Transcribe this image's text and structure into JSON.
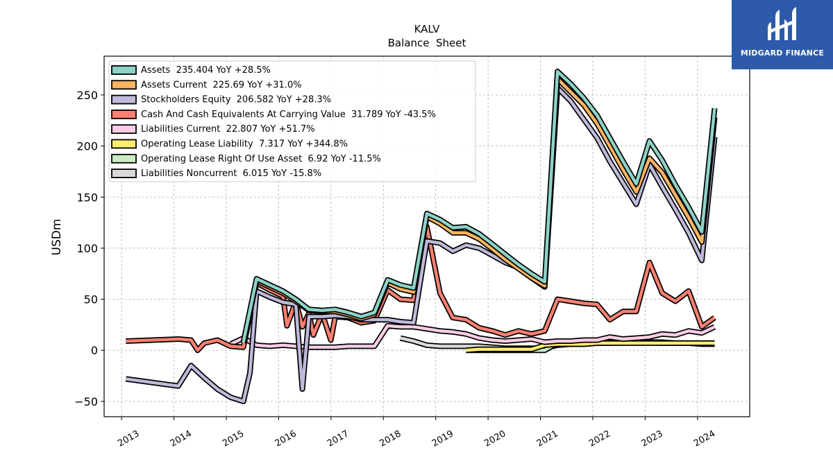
{
  "brand": {
    "name": "MIDGARD FINANCE",
    "color": "#2d5baa"
  },
  "chart_data": {
    "type": "line",
    "title": "KALV",
    "subtitle": "Balance  Sheet",
    "ylabel": "USDm",
    "xlabel": "",
    "xlim": [
      "2012-09-01",
      "2024-12-31"
    ],
    "ylim": [
      -65,
      288
    ],
    "x_ticks": [
      "2013",
      "2014",
      "2015",
      "2016",
      "2017",
      "2018",
      "2019",
      "2020",
      "2021",
      "2022",
      "2023",
      "2024"
    ],
    "y_ticks": [
      -50,
      0,
      50,
      100,
      150,
      200,
      250
    ],
    "grid": true,
    "legend_position": "top-left",
    "series": [
      {
        "name": "Assets",
        "legend": "Assets  235.404 YoY +28.5%",
        "color": "#8dd3c7",
        "points": [
          [
            "2015-04-30",
            8
          ],
          [
            "2015-07-31",
            70
          ],
          [
            "2015-10-31",
            64
          ],
          [
            "2016-01-31",
            58
          ],
          [
            "2016-04-30",
            50
          ],
          [
            "2016-07-31",
            40
          ],
          [
            "2016-10-31",
            39
          ],
          [
            "2017-01-31",
            40
          ],
          [
            "2017-04-30",
            37
          ],
          [
            "2017-07-31",
            33
          ],
          [
            "2017-10-31",
            37
          ],
          [
            "2018-01-31",
            69
          ],
          [
            "2018-04-30",
            64
          ],
          [
            "2018-07-31",
            61
          ],
          [
            "2018-10-31",
            134
          ],
          [
            "2019-01-31",
            128
          ],
          [
            "2019-04-30",
            120
          ],
          [
            "2019-07-31",
            121
          ],
          [
            "2019-10-31",
            114
          ],
          [
            "2020-01-31",
            104
          ],
          [
            "2020-04-30",
            94
          ],
          [
            "2020-07-31",
            84
          ],
          [
            "2020-10-31",
            75
          ],
          [
            "2021-01-31",
            67
          ],
          [
            "2021-04-30",
            273
          ],
          [
            "2021-07-31",
            261
          ],
          [
            "2021-10-31",
            247
          ],
          [
            "2022-01-31",
            230
          ],
          [
            "2022-04-30",
            208
          ],
          [
            "2022-07-31",
            185
          ],
          [
            "2022-10-31",
            163
          ],
          [
            "2023-01-31",
            205
          ],
          [
            "2023-04-30",
            186
          ],
          [
            "2023-07-31",
            162
          ],
          [
            "2023-10-31",
            140
          ],
          [
            "2024-01-31",
            116
          ],
          [
            "2024-04-30",
            237
          ]
        ]
      },
      {
        "name": "Assets Current",
        "legend": "Assets Current  225.69 YoY +31.0%",
        "color": "#fdb462",
        "points": [
          [
            "2015-04-30",
            7
          ],
          [
            "2015-07-31",
            68
          ],
          [
            "2015-10-31",
            62
          ],
          [
            "2016-01-31",
            56
          ],
          [
            "2016-04-30",
            48
          ],
          [
            "2016-07-31",
            39
          ],
          [
            "2016-10-31",
            38
          ],
          [
            "2017-01-31",
            38
          ],
          [
            "2017-04-30",
            35
          ],
          [
            "2017-07-31",
            31
          ],
          [
            "2017-10-31",
            35
          ],
          [
            "2018-01-31",
            66
          ],
          [
            "2018-04-30",
            60
          ],
          [
            "2018-07-31",
            57
          ],
          [
            "2018-10-31",
            131
          ],
          [
            "2019-01-31",
            124
          ],
          [
            "2019-04-30",
            115
          ],
          [
            "2019-07-31",
            115
          ],
          [
            "2019-10-31",
            109
          ],
          [
            "2020-01-31",
            99
          ],
          [
            "2020-04-30",
            89
          ],
          [
            "2020-07-31",
            80
          ],
          [
            "2020-10-31",
            71
          ],
          [
            "2021-01-31",
            63
          ],
          [
            "2021-04-30",
            266
          ],
          [
            "2021-07-31",
            253
          ],
          [
            "2021-10-31",
            240
          ],
          [
            "2022-01-31",
            222
          ],
          [
            "2022-04-30",
            200
          ],
          [
            "2022-07-31",
            177
          ],
          [
            "2022-10-31",
            155
          ],
          [
            "2023-01-31",
            188
          ],
          [
            "2023-04-30",
            174
          ],
          [
            "2023-07-31",
            152
          ],
          [
            "2023-10-31",
            130
          ],
          [
            "2024-01-31",
            106
          ],
          [
            "2024-04-30",
            228
          ]
        ]
      },
      {
        "name": "Stockholders Equity",
        "legend": "Stockholders Equity  206.582 YoY +28.3%",
        "color": "#bebada",
        "points": [
          [
            "2013-01-31",
            -28
          ],
          [
            "2014-01-31",
            -35
          ],
          [
            "2014-04-30",
            -15
          ],
          [
            "2014-07-31",
            -27
          ],
          [
            "2014-10-31",
            -38
          ],
          [
            "2015-01-31",
            -46
          ],
          [
            "2015-04-30",
            -50
          ],
          [
            "2015-06-15",
            -22
          ],
          [
            "2015-07-31",
            58
          ],
          [
            "2015-10-31",
            52
          ],
          [
            "2016-01-31",
            47
          ],
          [
            "2016-04-30",
            45
          ],
          [
            "2016-06-15",
            -38
          ],
          [
            "2016-07-31",
            33
          ],
          [
            "2016-10-31",
            33
          ],
          [
            "2017-01-31",
            34
          ],
          [
            "2017-04-30",
            33
          ],
          [
            "2017-07-31",
            30
          ],
          [
            "2017-10-31",
            30
          ],
          [
            "2018-01-31",
            30
          ],
          [
            "2018-04-30",
            28
          ],
          [
            "2018-07-31",
            27
          ],
          [
            "2018-10-31",
            107
          ],
          [
            "2019-01-31",
            105
          ],
          [
            "2019-04-30",
            97
          ],
          [
            "2019-07-31",
            103
          ],
          [
            "2019-10-31",
            100
          ],
          [
            "2020-01-31",
            93
          ],
          [
            "2020-04-30",
            86
          ],
          [
            "2020-07-31",
            81
          ],
          [
            "2020-10-31",
            71
          ],
          [
            "2021-01-31",
            62
          ],
          [
            "2021-04-30",
            257
          ],
          [
            "2021-07-31",
            244
          ],
          [
            "2021-10-31",
            226
          ],
          [
            "2022-01-31",
            208
          ],
          [
            "2022-04-30",
            185
          ],
          [
            "2022-07-31",
            164
          ],
          [
            "2022-10-31",
            143
          ],
          [
            "2023-01-31",
            182
          ],
          [
            "2023-04-30",
            160
          ],
          [
            "2023-07-31",
            138
          ],
          [
            "2023-10-31",
            115
          ],
          [
            "2024-01-31",
            88
          ],
          [
            "2024-04-30",
            209
          ]
        ]
      },
      {
        "name": "Cash And Cash Equivalents At Carrying Value",
        "legend": "Cash And Cash Equivalents At Carrying Value  31.789 YoY -43.5%",
        "color": "#fb8072",
        "points": [
          [
            "2013-01-31",
            9
          ],
          [
            "2014-01-31",
            11
          ],
          [
            "2014-04-30",
            10
          ],
          [
            "2014-06-15",
            0
          ],
          [
            "2014-07-31",
            7
          ],
          [
            "2014-10-31",
            10
          ],
          [
            "2015-01-31",
            4
          ],
          [
            "2015-04-30",
            3
          ],
          [
            "2015-07-31",
            66
          ],
          [
            "2015-10-31",
            59
          ],
          [
            "2016-01-31",
            53
          ],
          [
            "2016-02-28",
            24
          ],
          [
            "2016-04-30",
            48
          ],
          [
            "2016-06-15",
            23
          ],
          [
            "2016-07-31",
            36
          ],
          [
            "2016-08-31",
            15
          ],
          [
            "2016-10-31",
            36
          ],
          [
            "2016-12-31",
            10
          ],
          [
            "2017-01-31",
            33
          ],
          [
            "2017-04-30",
            32
          ],
          [
            "2017-07-31",
            27
          ],
          [
            "2017-10-31",
            29
          ],
          [
            "2018-01-31",
            59
          ],
          [
            "2018-04-30",
            50
          ],
          [
            "2018-07-31",
            49
          ],
          [
            "2018-10-31",
            121
          ],
          [
            "2019-01-31",
            56
          ],
          [
            "2019-04-30",
            32
          ],
          [
            "2019-07-31",
            30
          ],
          [
            "2019-10-31",
            22
          ],
          [
            "2020-01-31",
            19
          ],
          [
            "2020-04-30",
            15
          ],
          [
            "2020-07-31",
            19
          ],
          [
            "2020-10-31",
            16
          ],
          [
            "2021-01-31",
            19
          ],
          [
            "2021-04-30",
            50
          ],
          [
            "2021-07-31",
            48
          ],
          [
            "2021-10-31",
            46
          ],
          [
            "2022-01-31",
            45
          ],
          [
            "2022-04-30",
            30
          ],
          [
            "2022-07-31",
            38
          ],
          [
            "2022-10-31",
            38
          ],
          [
            "2023-01-31",
            86
          ],
          [
            "2023-04-30",
            56
          ],
          [
            "2023-07-31",
            48
          ],
          [
            "2023-10-31",
            58
          ],
          [
            "2024-01-31",
            23
          ],
          [
            "2024-04-30",
            32
          ]
        ]
      },
      {
        "name": "Liabilities Current",
        "legend": "Liabilities Current  22.807 YoY +51.7%",
        "color": "#fccde5",
        "points": [
          [
            "2015-01-31",
            6
          ],
          [
            "2015-04-30",
            12
          ],
          [
            "2015-07-31",
            5
          ],
          [
            "2015-10-31",
            4
          ],
          [
            "2016-01-31",
            5
          ],
          [
            "2016-04-30",
            4
          ],
          [
            "2016-07-31",
            3
          ],
          [
            "2016-10-31",
            3
          ],
          [
            "2017-01-31",
            3
          ],
          [
            "2017-04-30",
            4
          ],
          [
            "2017-07-31",
            4
          ],
          [
            "2017-10-31",
            4
          ],
          [
            "2018-01-31",
            24
          ],
          [
            "2018-04-30",
            23
          ],
          [
            "2018-07-31",
            23
          ],
          [
            "2018-10-31",
            21
          ],
          [
            "2019-01-31",
            19
          ],
          [
            "2019-04-30",
            18
          ],
          [
            "2019-07-31",
            16
          ],
          [
            "2019-10-31",
            12
          ],
          [
            "2020-01-31",
            10
          ],
          [
            "2020-04-30",
            9
          ],
          [
            "2020-07-31",
            10
          ],
          [
            "2020-10-31",
            11
          ],
          [
            "2021-01-31",
            8
          ],
          [
            "2021-04-30",
            9
          ],
          [
            "2021-07-31",
            9
          ],
          [
            "2021-10-31",
            10
          ],
          [
            "2022-01-31",
            10
          ],
          [
            "2022-04-30",
            13
          ],
          [
            "2022-07-31",
            11
          ],
          [
            "2022-10-31",
            12
          ],
          [
            "2023-01-31",
            13
          ],
          [
            "2023-04-30",
            16
          ],
          [
            "2023-07-31",
            15
          ],
          [
            "2023-10-31",
            19
          ],
          [
            "2024-01-31",
            17
          ],
          [
            "2024-04-30",
            23
          ]
        ]
      },
      {
        "name": "Operating Lease Liability",
        "legend": "Operating Lease Liability  7.317 YoY +344.8%",
        "color": "#ffed6f",
        "points": [
          [
            "2019-07-31",
            0
          ],
          [
            "2019-10-31",
            1
          ],
          [
            "2020-01-31",
            1
          ],
          [
            "2020-04-30",
            1
          ],
          [
            "2020-07-31",
            1
          ],
          [
            "2020-10-31",
            1
          ],
          [
            "2021-01-31",
            5
          ],
          [
            "2021-04-30",
            6
          ],
          [
            "2021-07-31",
            6
          ],
          [
            "2021-10-31",
            6
          ],
          [
            "2022-01-31",
            7
          ],
          [
            "2022-04-30",
            7
          ],
          [
            "2022-07-31",
            7
          ],
          [
            "2022-10-31",
            7
          ],
          [
            "2023-01-31",
            7
          ],
          [
            "2023-04-30",
            7
          ],
          [
            "2023-07-31",
            7
          ],
          [
            "2023-10-31",
            7
          ],
          [
            "2024-01-31",
            7
          ],
          [
            "2024-04-30",
            7
          ]
        ]
      },
      {
        "name": "Operating Lease Right Of Use Asset",
        "legend": "Operating Lease Right Of Use Asset  6.92 YoY -11.5%",
        "color": "#ccebc5",
        "points": [
          [
            "2019-07-31",
            0
          ],
          [
            "2019-10-31",
            0
          ],
          [
            "2020-01-31",
            0
          ],
          [
            "2020-04-30",
            0
          ],
          [
            "2020-07-31",
            0
          ],
          [
            "2020-10-31",
            0
          ],
          [
            "2021-01-31",
            0
          ],
          [
            "2021-04-30",
            7
          ],
          [
            "2021-07-31",
            7
          ],
          [
            "2021-10-31",
            8
          ],
          [
            "2022-01-31",
            8
          ],
          [
            "2022-04-30",
            8
          ],
          [
            "2022-07-31",
            8
          ],
          [
            "2022-10-31",
            8
          ],
          [
            "2023-01-31",
            8
          ],
          [
            "2023-04-30",
            8
          ],
          [
            "2023-07-31",
            7
          ],
          [
            "2023-10-31",
            7
          ],
          [
            "2024-01-31",
            7
          ],
          [
            "2024-04-30",
            7
          ]
        ]
      },
      {
        "name": "Liabilities Noncurrent",
        "legend": "Liabilities Noncurrent  6.015 YoY -15.8%",
        "color": "#d9d9d9",
        "points": [
          [
            "2018-04-30",
            12
          ],
          [
            "2018-07-31",
            9
          ],
          [
            "2018-10-31",
            5
          ],
          [
            "2019-01-31",
            4
          ],
          [
            "2019-04-30",
            4
          ],
          [
            "2019-07-31",
            4
          ],
          [
            "2019-10-31",
            4
          ],
          [
            "2020-01-31",
            3
          ],
          [
            "2020-04-30",
            2
          ],
          [
            "2020-07-31",
            2
          ],
          [
            "2020-10-31",
            2
          ],
          [
            "2021-01-31",
            2
          ],
          [
            "2021-04-30",
            5
          ],
          [
            "2021-07-31",
            6
          ],
          [
            "2021-10-31",
            6
          ],
          [
            "2022-01-31",
            7
          ],
          [
            "2022-04-30",
            7
          ],
          [
            "2022-07-31",
            8
          ],
          [
            "2022-10-31",
            8
          ],
          [
            "2023-01-31",
            8
          ],
          [
            "2023-04-30",
            7
          ],
          [
            "2023-07-31",
            7
          ],
          [
            "2023-10-31",
            7
          ],
          [
            "2024-01-31",
            6
          ],
          [
            "2024-04-30",
            6
          ]
        ]
      }
    ]
  }
}
